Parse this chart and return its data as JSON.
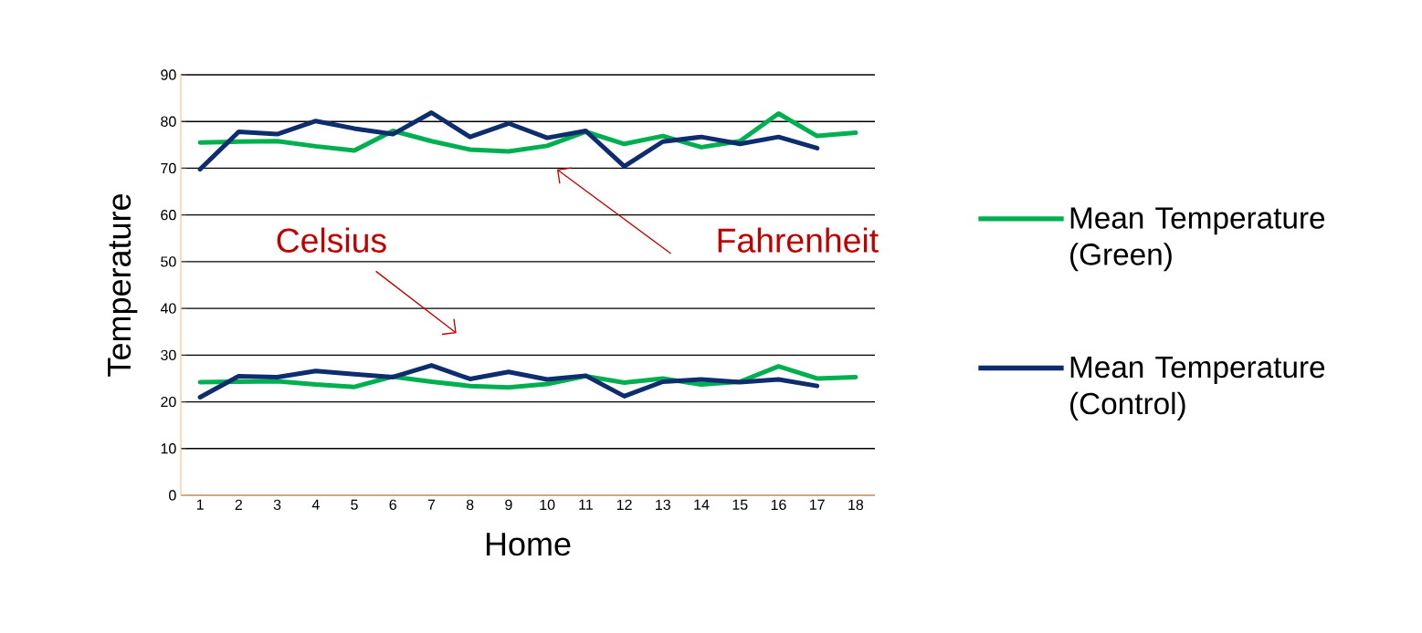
{
  "chart_data": {
    "type": "line",
    "xlabel": "Home",
    "ylabel": "Temperature",
    "categories": [
      "1",
      "2",
      "3",
      "4",
      "5",
      "6",
      "7",
      "8",
      "9",
      "10",
      "11",
      "12",
      "13",
      "14",
      "15",
      "16",
      "17",
      "18"
    ],
    "series": [
      {
        "name": "Mean Temperature (Green)",
        "color": "#00b050",
        "values": [
          75.5,
          75.7,
          75.8,
          74.7,
          73.8,
          78,
          75.8,
          74,
          73.6,
          74.8,
          77.8,
          75.2,
          76.9,
          74.5,
          75.8,
          81.7,
          76.9,
          77.6
        ]
      },
      {
        "name": "Mean Temperature (Control)",
        "color": "#0d2d6e",
        "values": [
          69.8,
          77.8,
          77.3,
          80.1,
          78.5,
          77.3,
          81.9,
          76.7,
          79.6,
          76.5,
          78,
          70.4,
          75.7,
          76.7,
          75.2,
          76.7,
          74.3,
          null
        ]
      },
      {
        "color": "#00b050",
        "values": [
          24.2,
          24.3,
          24.4,
          23.7,
          23.2,
          25.4,
          24.3,
          23.4,
          23.1,
          23.8,
          25.5,
          24.1,
          25,
          23.7,
          24.3,
          27.6,
          25,
          25.3
        ]
      },
      {
        "color": "#0d2d6e",
        "values": [
          21,
          25.5,
          25.3,
          26.6,
          25.9,
          25.3,
          27.8,
          24.9,
          26.4,
          24.8,
          25.6,
          21.2,
          24.3,
          24.8,
          24.2,
          24.8,
          23.4,
          null
        ]
      }
    ],
    "ylim": [
      0,
      90
    ],
    "yticks": [
      0,
      10,
      20,
      30,
      40,
      50,
      60,
      70,
      80,
      90
    ],
    "grid": "y",
    "legend": "right",
    "marker": "none",
    "line_style": "solid",
    "annotations": [
      "Fahrenheit",
      "Celsius"
    ]
  }
}
